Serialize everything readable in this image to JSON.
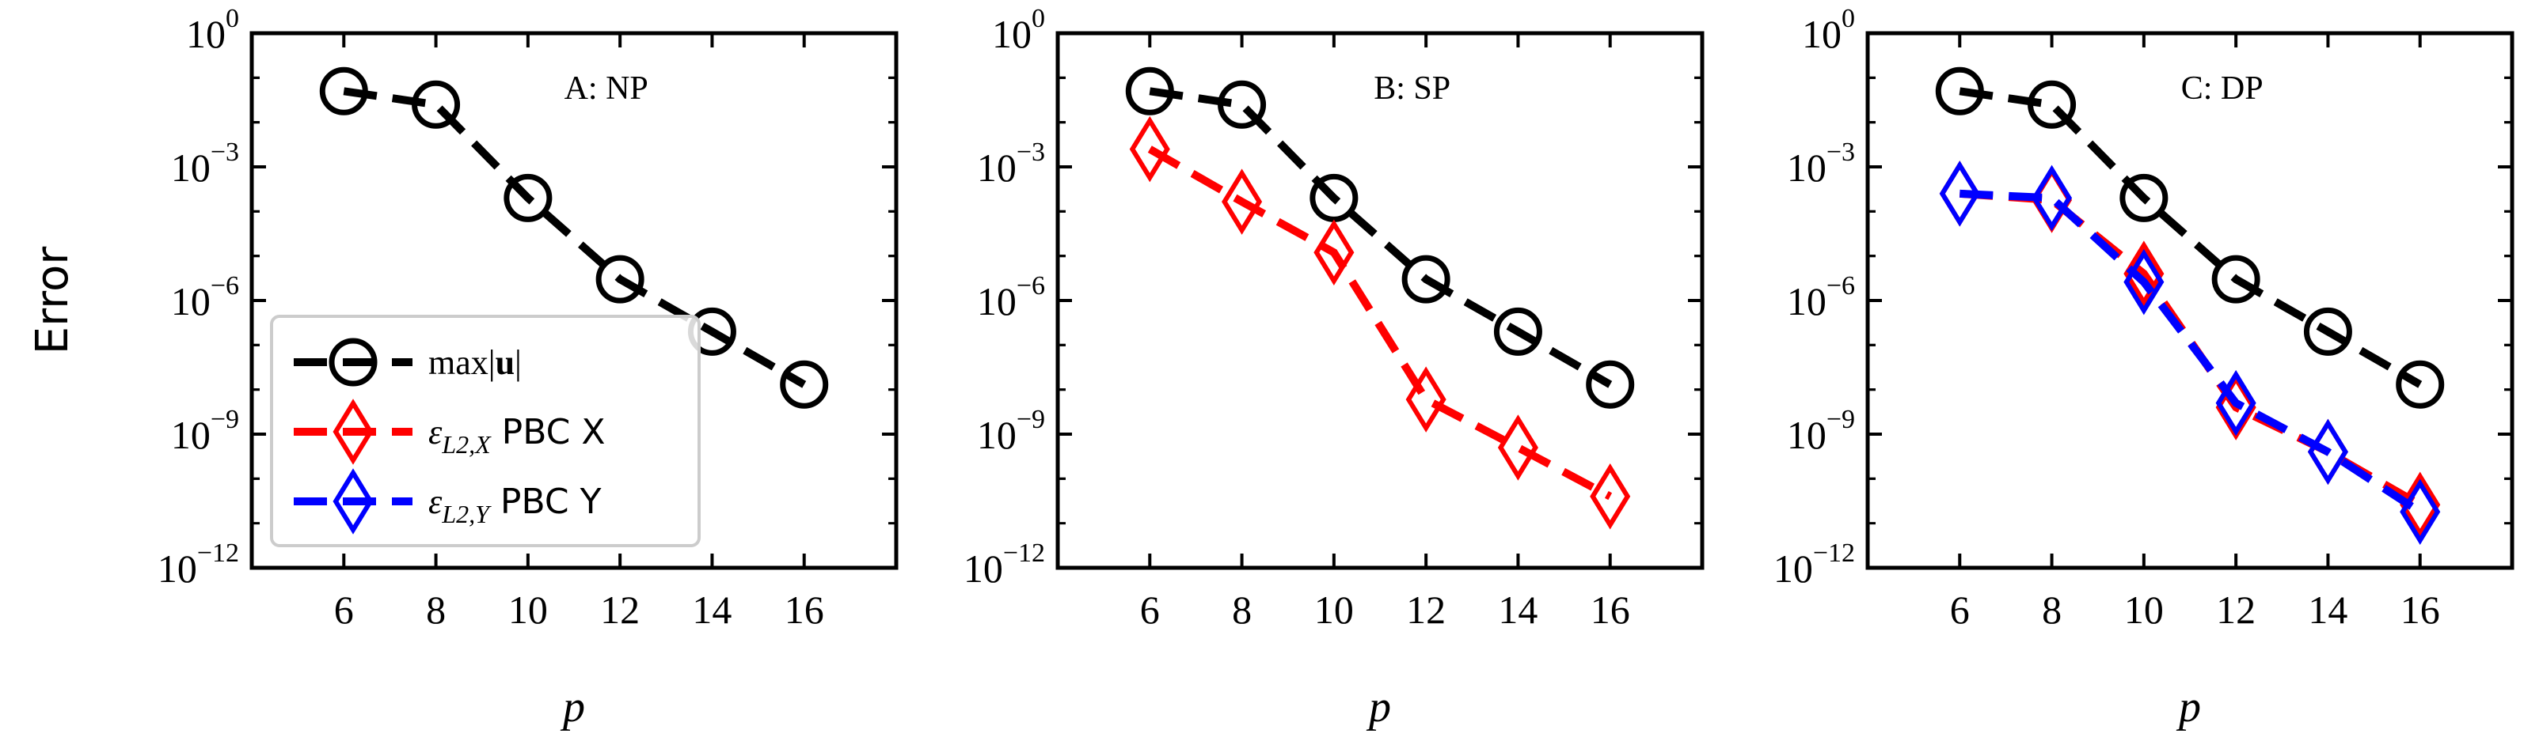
{
  "chart_data": {
    "type": "line",
    "y_axis_label": "Error",
    "y_scale": "log",
    "ylim": [
      1e-12,
      1
    ],
    "y_ticks": [
      {
        "value": 1,
        "base": "10",
        "exp": "0"
      },
      {
        "value": 0.001,
        "base": "10",
        "exp": "−3"
      },
      {
        "value": 1e-06,
        "base": "10",
        "exp": "−6"
      },
      {
        "value": 1e-09,
        "base": "10",
        "exp": "−9"
      },
      {
        "value": 1e-12,
        "base": "10",
        "exp": "−12"
      }
    ],
    "xlim": [
      4,
      18
    ],
    "x_ticks": [
      6,
      8,
      10,
      12,
      14,
      16
    ],
    "x_axis_label": "p",
    "legend": {
      "placement": "lower-left of panel A",
      "entries": [
        {
          "series": "max_u",
          "text_main": "max|",
          "text_bold": "u",
          "text_close": "|"
        },
        {
          "series": "eps_x",
          "symbol": "ε",
          "subscript": "L2,X",
          "suffix": " PBC X"
        },
        {
          "series": "eps_y",
          "symbol": "ε",
          "subscript": "L2,Y",
          "suffix": " PBC Y"
        }
      ]
    },
    "series_styles": {
      "max_u": {
        "color": "#000000",
        "marker": "circle"
      },
      "eps_x": {
        "color": "#ff0000",
        "marker": "diamond"
      },
      "eps_y": {
        "color": "#0000ff",
        "marker": "diamond"
      }
    },
    "panels": [
      {
        "title": "A: NP",
        "series": [
          {
            "key": "max_u",
            "x": [
              6,
              8,
              10,
              12,
              14,
              16
            ],
            "y": [
              0.05,
              0.025,
              0.0002,
              3e-06,
              2e-07,
              1.3e-08
            ]
          }
        ]
      },
      {
        "title": "B: SP",
        "series": [
          {
            "key": "max_u",
            "x": [
              6,
              8,
              10,
              12,
              14,
              16
            ],
            "y": [
              0.05,
              0.025,
              0.0002,
              3e-06,
              2e-07,
              1.3e-08
            ]
          },
          {
            "key": "eps_x",
            "x": [
              6,
              8,
              10,
              12,
              14,
              16
            ],
            "y": [
              0.0025,
              0.000165,
              1.2e-05,
              6e-09,
              5e-10,
              4e-11
            ]
          }
        ]
      },
      {
        "title": "C: DP",
        "series": [
          {
            "key": "max_u",
            "x": [
              6,
              8,
              10,
              12,
              14,
              16
            ],
            "y": [
              0.05,
              0.025,
              0.0002,
              3e-06,
              2e-07,
              1.3e-08
            ]
          },
          {
            "key": "eps_x",
            "x": [
              6,
              8,
              10,
              12,
              14,
              16
            ],
            "y": [
              0.00025,
              0.00018,
              4e-06,
              4e-09,
              4e-10,
              2.6e-11
            ]
          },
          {
            "key": "eps_y",
            "x": [
              6,
              8,
              10,
              12,
              14,
              16
            ],
            "y": [
              0.00025,
              0.0002,
              2.6e-06,
              5e-09,
              4e-10,
              1.8e-11
            ]
          }
        ]
      }
    ]
  }
}
